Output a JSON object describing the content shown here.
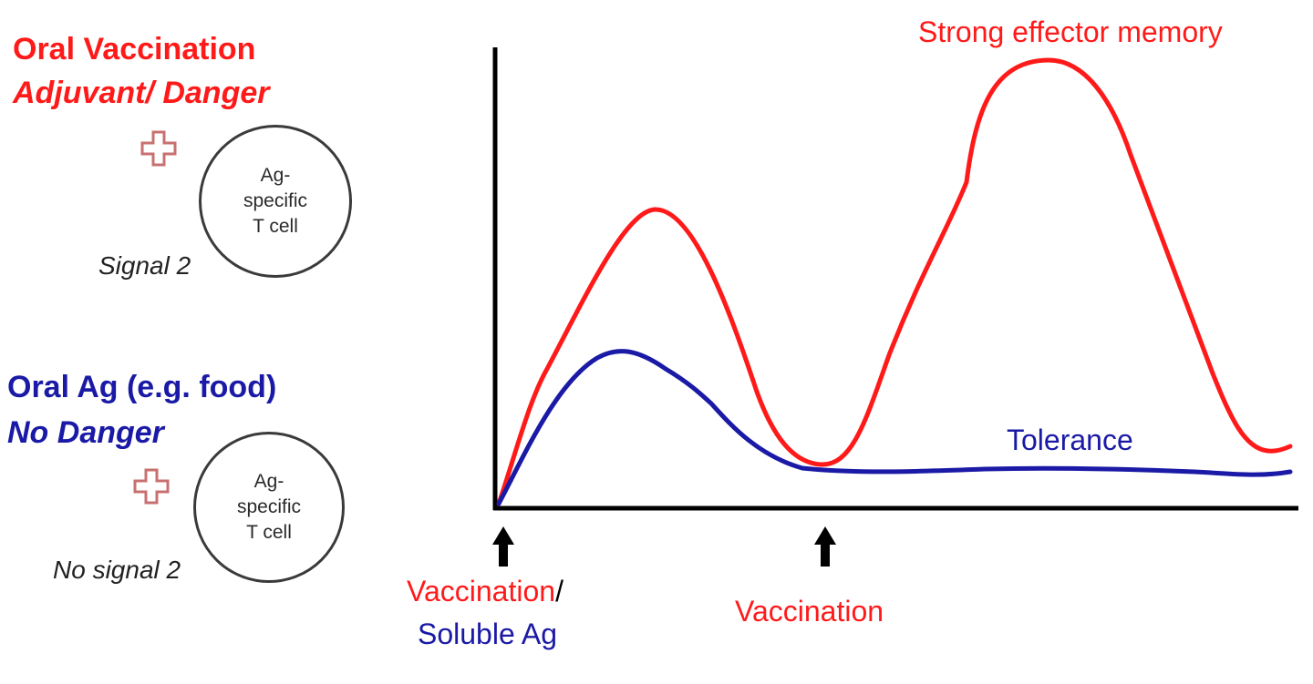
{
  "colors": {
    "red": "#ff1a1a",
    "blue": "#1a1aa6",
    "black": "#000000",
    "plus": "#c87070"
  },
  "top_group": {
    "line1": "Oral Vaccination",
    "line2": "Adjuvant/ Danger",
    "cell_text": [
      "Ag-",
      "specific",
      "T cell"
    ],
    "signal": "Signal 2",
    "icon": "plus-icon"
  },
  "bottom_group": {
    "line1": "Oral Ag (e.g. food)",
    "line2": "No Danger",
    "cell_text": [
      "Ag-",
      "specific",
      "T cell"
    ],
    "signal": "No signal 2",
    "icon": "plus-icon"
  },
  "chart": {
    "red_curve_label": "Strong effector memory",
    "blue_curve_label": "Tolerance",
    "arrow1_label_red": "Vaccination",
    "arrow1_label_slash": "/",
    "arrow1_label_blue": "Soluble Ag",
    "arrow2_label": "Vaccination"
  }
}
